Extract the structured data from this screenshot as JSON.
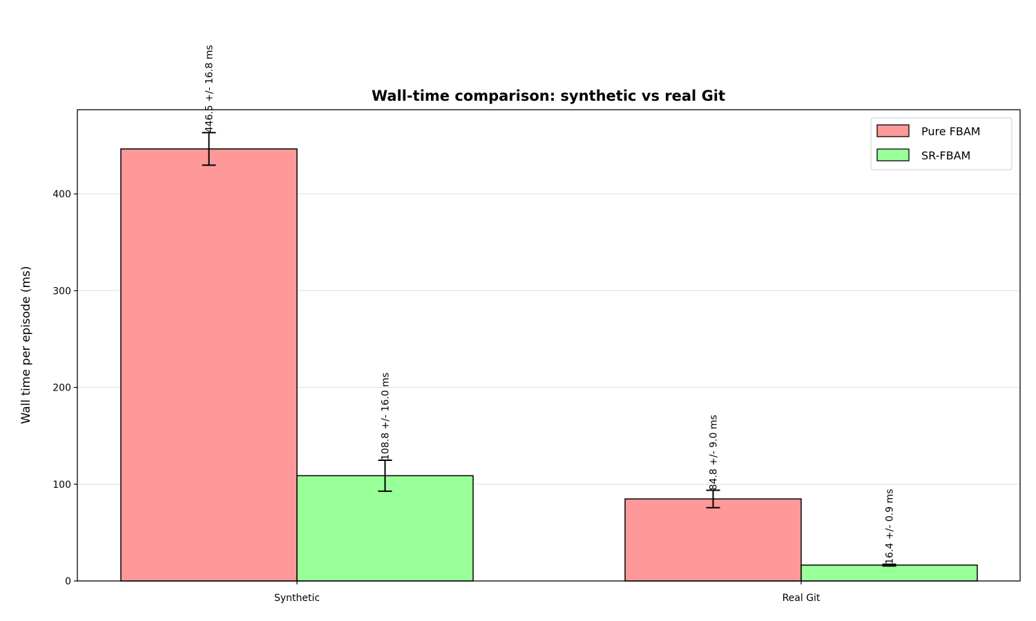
{
  "chart_data": {
    "type": "bar",
    "title": "Wall-time comparison: synthetic vs real Git",
    "xlabel": "",
    "ylabel": "Wall time per episode (ms)",
    "categories": [
      "Synthetic",
      "Real Git"
    ],
    "series": [
      {
        "name": "Pure FBAM",
        "color": "#ff9999",
        "values": [
          446.5,
          84.8
        ],
        "errors": [
          16.8,
          9.0
        ],
        "labels": [
          "446.5 +/- 16.8 ms",
          "84.8 +/- 9.0 ms"
        ]
      },
      {
        "name": "SR-FBAM",
        "color": "#99ff99",
        "values": [
          108.8,
          16.4
        ],
        "errors": [
          16.0,
          0.9
        ],
        "labels": [
          "108.8 +/- 16.0 ms",
          "16.4 +/- 0.9 ms"
        ]
      }
    ],
    "yticks": [
      0,
      100,
      200,
      300,
      400
    ],
    "ylim": [
      0,
      487
    ],
    "grid": "y",
    "legend_position": "top-right"
  }
}
